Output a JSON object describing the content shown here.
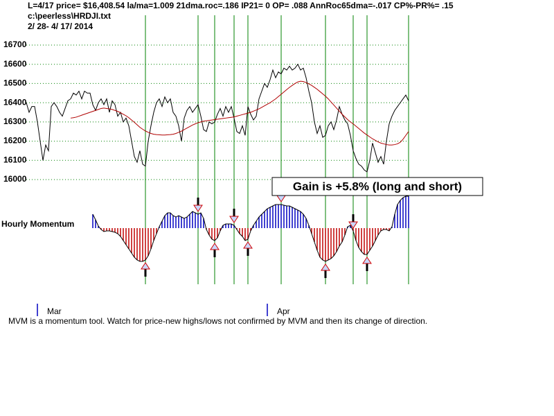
{
  "chart_data": {
    "type": "line",
    "header": [
      "L=4/17  price= $16,408.54  la/ma=1.009 21dma.roc=.186 IP21= 0 OP= .088 AnnRoc65dma=-.017 CP%-PR%=  .15",
      "c:\\peerless\\HRDJI.txt",
      " 2/ 28- 4/ 17/ 2014"
    ],
    "ylim": [
      16000,
      16700
    ],
    "yticks": [
      16000,
      16100,
      16200,
      16300,
      16400,
      16500,
      16600,
      16700
    ],
    "grid": true,
    "series": [
      {
        "name": "price",
        "color": "#000000",
        "values": [
          16400,
          16350,
          16380,
          16380,
          16300,
          16200,
          16100,
          16180,
          16150,
          16380,
          16400,
          16380,
          16350,
          16330,
          16370,
          16410,
          16420,
          16450,
          16440,
          16460,
          16420,
          16460,
          16450,
          16450,
          16390,
          16360,
          16400,
          16420,
          16390,
          16420,
          16350,
          16410,
          16390,
          16330,
          16350,
          16300,
          16320,
          16280,
          16200,
          16120,
          16090,
          16150,
          16080,
          16070,
          16200,
          16280,
          16350,
          16400,
          16420,
          16380,
          16430,
          16400,
          16420,
          16350,
          16330,
          16280,
          16200,
          16320,
          16360,
          16380,
          16350,
          16370,
          16390,
          16330,
          16260,
          16250,
          16300,
          16290,
          16300,
          16340,
          16370,
          16330,
          16380,
          16350,
          16380,
          16320,
          16250,
          16240,
          16280,
          16230,
          16380,
          16340,
          16310,
          16330,
          16420,
          16460,
          16500,
          16480,
          16520,
          16570,
          16530,
          16560,
          16550,
          16580,
          16570,
          16590,
          16570,
          16580,
          16600,
          16570,
          16580,
          16530,
          16460,
          16400,
          16300,
          16240,
          16280,
          16220,
          16230,
          16280,
          16300,
          16260,
          16310,
          16380,
          16340,
          16310,
          16290,
          16230,
          16150,
          16110,
          16080,
          16070,
          16050,
          16040,
          16100,
          16190,
          16140,
          16090,
          16120,
          16080,
          16200,
          16290,
          16330,
          16360,
          16380,
          16400,
          16420,
          16440,
          16410
        ]
      },
      {
        "name": "moving average",
        "color": "#b00000",
        "values": [
          null,
          null,
          null,
          null,
          null,
          null,
          null,
          null,
          null,
          null,
          null,
          null,
          null,
          null,
          null,
          null,
          16320,
          16322,
          16325,
          16330,
          16335,
          16340,
          16345,
          16350,
          16355,
          16360,
          16365,
          16370,
          16372,
          16370,
          16368,
          16365,
          16360,
          16355,
          16348,
          16340,
          16332,
          16322,
          16310,
          16298,
          16285,
          16272,
          16262,
          16253,
          16246,
          16240,
          16236,
          16234,
          16233,
          16232,
          16232,
          16233,
          16234,
          16236,
          16240,
          16246,
          16252,
          16260,
          16268,
          16276,
          16284,
          16290,
          16296,
          16300,
          16304,
          16306,
          16308,
          16310,
          16312,
          16314,
          16316,
          16318,
          16320,
          16322,
          16324,
          16326,
          16330,
          16334,
          16338,
          16342,
          16346,
          16350,
          16356,
          16362,
          16368,
          16376,
          16384,
          16392,
          16400,
          16410,
          16420,
          16432,
          16444,
          16456,
          16468,
          16480,
          16490,
          16500,
          16508,
          16512,
          16510,
          16505,
          16498,
          16490,
          16480,
          16470,
          16458,
          16446,
          16434,
          16420,
          16404,
          16388,
          16372,
          16356,
          16340,
          16326,
          16312,
          16300,
          16290,
          16278,
          16266,
          16254,
          16242,
          16232,
          16222,
          16212,
          16204,
          16196,
          16190,
          16186,
          16182,
          16180,
          16180,
          16182,
          16186,
          16194,
          16210,
          16230,
          16250
        ]
      }
    ],
    "momentum": {
      "label": "Hourly Momentum",
      "up_color": "#0000c0",
      "down_color": "#c00000",
      "values": [
        null,
        null,
        null,
        null,
        null,
        null,
        null,
        null,
        null,
        null,
        null,
        null,
        null,
        null,
        null,
        null,
        null,
        null,
        null,
        null,
        null,
        null,
        null,
        null,
        20,
        12,
        3,
        -2,
        -5,
        -4,
        -4,
        -5,
        -6,
        -8,
        -12,
        -18,
        -24,
        -30,
        -36,
        -42,
        -46,
        -48,
        -48,
        -46,
        -40,
        -30,
        -18,
        -8,
        2,
        10,
        18,
        22,
        22,
        18,
        16,
        18,
        16,
        14,
        16,
        20,
        24,
        22,
        20,
        22,
        14,
        -2,
        -10,
        -16,
        -18,
        -14,
        -4,
        4,
        6,
        6,
        6,
        4,
        -2,
        -8,
        -12,
        -18,
        -16,
        -4,
        4,
        10,
        16,
        20,
        24,
        28,
        30,
        32,
        34,
        34,
        34,
        33,
        32,
        32,
        30,
        28,
        26,
        24,
        20,
        14,
        4,
        -8,
        -20,
        -32,
        -42,
        -46,
        -48,
        -46,
        -44,
        -40,
        -34,
        -26,
        -20,
        -10,
        2,
        4,
        -4,
        -18,
        -28,
        -34,
        -38,
        -38,
        -32,
        -26,
        -18,
        -10,
        -4,
        -2,
        -2,
        -4,
        2,
        20,
        34,
        40,
        44,
        46,
        46
      ]
    },
    "signals": [
      {
        "x": 43,
        "side": "buy"
      },
      {
        "x": 62,
        "side": "sell"
      },
      {
        "x": 68,
        "side": "buy"
      },
      {
        "x": 75,
        "side": "sell"
      },
      {
        "x": 80,
        "side": "buy"
      },
      {
        "x": 92,
        "side": "sell"
      },
      {
        "x": 108,
        "side": "buy"
      },
      {
        "x": 118,
        "side": "sell"
      },
      {
        "x": 123,
        "side": "buy"
      }
    ],
    "signal_color": "#008000",
    "annotation": "Gain is +5.8% (long and short)",
    "months": [
      {
        "label": "Mar",
        "x": 4
      },
      {
        "label": "Apr",
        "x": 87
      }
    ],
    "footnote": "MVM is a momentum tool. Watch for price-new highs/lows not confirmed by MVM and then its change of direction."
  }
}
